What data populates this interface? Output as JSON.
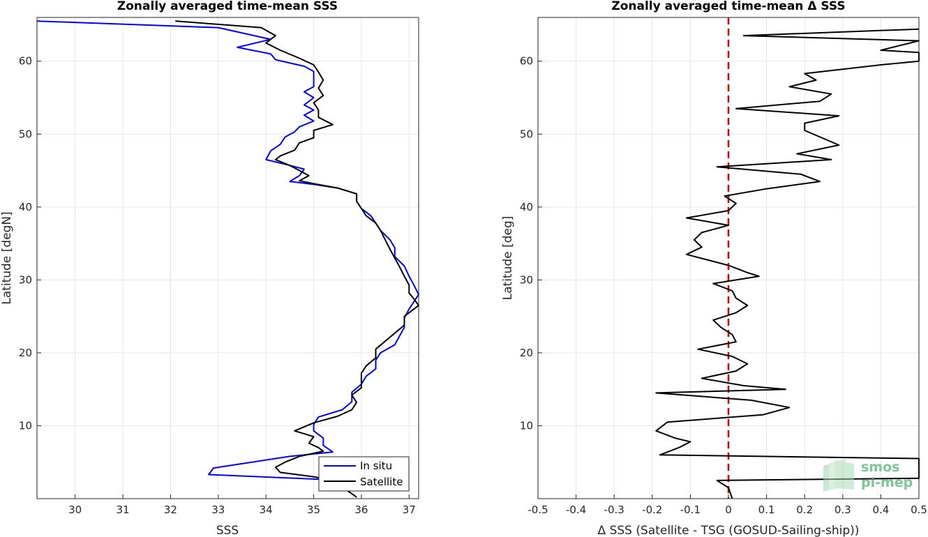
{
  "chart_data": [
    {
      "type": "line",
      "title": "Zonally averaged time-mean SSS",
      "xlabel": "SSS",
      "ylabel": "Latitude [degN]",
      "xlim": [
        29.2,
        37.2
      ],
      "ylim": [
        0,
        66
      ],
      "xticks": [
        30,
        31,
        32,
        33,
        34,
        35,
        36,
        37
      ],
      "yticks": [
        10,
        20,
        30,
        40,
        50,
        60
      ],
      "grid": true,
      "legend": {
        "placement": "bottom-right"
      },
      "series": [
        {
          "name": "In situ",
          "color": "#0000ff",
          "points": [
            [
              29.2,
              65.5
            ],
            [
              33.0,
              64.6
            ],
            [
              34.1,
              63.0
            ],
            [
              33.4,
              61.9
            ],
            [
              34.1,
              61.0
            ],
            [
              34.2,
              60.2
            ],
            [
              34.8,
              59.3
            ],
            [
              35.0,
              58.6
            ],
            [
              35.0,
              57.5
            ],
            [
              35.0,
              56.5
            ],
            [
              34.8,
              55.8
            ],
            [
              35.0,
              55.0
            ],
            [
              34.8,
              54.0
            ],
            [
              35.0,
              53.3
            ],
            [
              34.8,
              52.6
            ],
            [
              35.0,
              51.8
            ],
            [
              34.7,
              51.0
            ],
            [
              34.6,
              50.3
            ],
            [
              34.4,
              49.6
            ],
            [
              34.3,
              48.6
            ],
            [
              34.1,
              47.7
            ],
            [
              34.0,
              46.5
            ],
            [
              34.5,
              45.7
            ],
            [
              34.8,
              45.2
            ],
            [
              34.7,
              44.3
            ],
            [
              34.5,
              43.5
            ],
            [
              35.0,
              43.1
            ],
            [
              35.5,
              42.6
            ],
            [
              35.9,
              41.8
            ],
            [
              35.9,
              40.8
            ],
            [
              36.0,
              39.8
            ],
            [
              36.2,
              38.8
            ],
            [
              36.3,
              37.8
            ],
            [
              36.4,
              36.8
            ],
            [
              36.6,
              35.5
            ],
            [
              36.7,
              34.4
            ],
            [
              36.7,
              33.2
            ],
            [
              36.9,
              31.9
            ],
            [
              37.0,
              30.5
            ],
            [
              37.1,
              29.3
            ],
            [
              37.2,
              28.0
            ],
            [
              37.1,
              27.0
            ],
            [
              37.0,
              26.0
            ],
            [
              36.9,
              24.8
            ],
            [
              36.9,
              23.5
            ],
            [
              36.8,
              22.3
            ],
            [
              36.7,
              21.1
            ],
            [
              36.4,
              20.0
            ],
            [
              36.3,
              19.0
            ],
            [
              36.3,
              17.8
            ],
            [
              36.1,
              16.8
            ],
            [
              36.0,
              15.7
            ],
            [
              35.8,
              14.6
            ],
            [
              35.8,
              13.3
            ],
            [
              35.6,
              12.2
            ],
            [
              35.1,
              11.2
            ],
            [
              35.0,
              10.2
            ],
            [
              35.0,
              9.3
            ],
            [
              35.2,
              8.3
            ],
            [
              35.2,
              7.3
            ],
            [
              35.4,
              6.4
            ],
            [
              34.5,
              5.8
            ],
            [
              32.9,
              4.2
            ],
            [
              32.8,
              3.3
            ],
            [
              35.3,
              2.6
            ],
            [
              35.5,
              2.0
            ],
            [
              35.6,
              1.2
            ]
          ]
        },
        {
          "name": "Satellite",
          "color": "#000000",
          "points": [
            [
              32.1,
              65.5
            ],
            [
              33.9,
              64.6
            ],
            [
              34.2,
              63.5
            ],
            [
              34.0,
              62.5
            ],
            [
              34.3,
              61.5
            ],
            [
              34.7,
              60.4
            ],
            [
              35.0,
              59.5
            ],
            [
              35.1,
              58.5
            ],
            [
              35.2,
              57.4
            ],
            [
              35.1,
              56.3
            ],
            [
              35.2,
              55.3
            ],
            [
              35.0,
              54.3
            ],
            [
              35.1,
              53.3
            ],
            [
              35.1,
              52.3
            ],
            [
              35.4,
              51.3
            ],
            [
              35.0,
              50.5
            ],
            [
              35.0,
              49.5
            ],
            [
              34.7,
              48.8
            ],
            [
              34.6,
              47.8
            ],
            [
              34.3,
              47.0
            ],
            [
              34.2,
              46.5
            ],
            [
              34.5,
              45.7
            ],
            [
              34.7,
              45.0
            ],
            [
              34.9,
              44.3
            ],
            [
              34.7,
              43.6
            ],
            [
              35.0,
              43.2
            ],
            [
              35.5,
              42.6
            ],
            [
              35.9,
              41.8
            ],
            [
              35.9,
              40.8
            ],
            [
              36.0,
              39.8
            ],
            [
              36.1,
              38.8
            ],
            [
              36.3,
              37.8
            ],
            [
              36.4,
              36.8
            ],
            [
              36.5,
              35.5
            ],
            [
              36.6,
              34.2
            ],
            [
              36.7,
              33.0
            ],
            [
              36.8,
              31.8
            ],
            [
              36.9,
              30.5
            ],
            [
              37.0,
              29.3
            ],
            [
              37.0,
              28.2
            ],
            [
              37.1,
              27.4
            ],
            [
              37.2,
              26.5
            ],
            [
              37.1,
              26.0
            ],
            [
              36.9,
              25.0
            ],
            [
              36.9,
              23.8
            ],
            [
              36.7,
              22.7
            ],
            [
              36.5,
              21.6
            ],
            [
              36.3,
              20.5
            ],
            [
              36.3,
              19.3
            ],
            [
              36.1,
              18.2
            ],
            [
              36.0,
              17.2
            ],
            [
              36.0,
              16.2
            ],
            [
              36.0,
              15.2
            ],
            [
              35.8,
              14.2
            ],
            [
              35.9,
              13.2
            ],
            [
              35.8,
              12.2
            ],
            [
              35.5,
              11.3
            ],
            [
              35.0,
              10.4
            ],
            [
              34.6,
              9.3
            ],
            [
              35.0,
              8.5
            ],
            [
              34.9,
              7.6
            ],
            [
              35.1,
              7.0
            ],
            [
              35.2,
              6.5
            ],
            [
              34.7,
              5.8
            ],
            [
              34.4,
              5.0
            ],
            [
              34.2,
              4.3
            ],
            [
              34.3,
              3.6
            ],
            [
              35.0,
              3.0
            ],
            [
              35.5,
              2.4
            ],
            [
              35.6,
              1.6
            ],
            [
              35.9,
              0.2
            ]
          ]
        }
      ]
    },
    {
      "type": "line",
      "title": "Zonally averaged time-mean Δ SSS",
      "xlabel": "Δ SSS (Satellite - TSG (GOSUD-Sailing-ship))",
      "ylabel": "Latitude [deg]",
      "xlim": [
        -0.5,
        0.5
      ],
      "ylim": [
        0,
        66
      ],
      "xticks": [
        -0.5,
        -0.4,
        -0.3,
        -0.2,
        -0.1,
        0,
        0.1,
        0.2,
        0.3,
        0.4,
        0.5
      ],
      "yticks": [
        10,
        20,
        30,
        40,
        50,
        60
      ],
      "grid": true,
      "reference_line": {
        "x": 0,
        "color": "#e00000",
        "style": "dashed"
      },
      "series": [
        {
          "name": "",
          "color": "#000000",
          "points": [
            [
              0.5,
              64.4
            ],
            [
              0.04,
              63.5
            ],
            [
              0.5,
              62.8
            ],
            [
              0.4,
              61.5
            ],
            [
              0.5,
              61.2
            ],
            [
              0.5,
              60.0
            ],
            [
              0.4,
              59.5
            ],
            [
              0.2,
              58.3
            ],
            [
              0.23,
              57.4
            ],
            [
              0.16,
              56.5
            ],
            [
              0.27,
              55.5
            ],
            [
              0.24,
              54.5
            ],
            [
              0.02,
              53.5
            ],
            [
              0.29,
              52.5
            ],
            [
              0.2,
              51.5
            ],
            [
              0.2,
              50.5
            ],
            [
              0.29,
              48.5
            ],
            [
              0.18,
              47.3
            ],
            [
              0.27,
              46.5
            ],
            [
              -0.03,
              45.5
            ],
            [
              0.19,
              44.5
            ],
            [
              0.24,
              43.5
            ],
            [
              0.1,
              42.5
            ],
            [
              -0.01,
              41.5
            ],
            [
              0.02,
              40.5
            ],
            [
              0.0,
              39.5
            ],
            [
              -0.11,
              38.5
            ],
            [
              0.0,
              37.5
            ],
            [
              -0.07,
              36.5
            ],
            [
              -0.09,
              35.5
            ],
            [
              -0.07,
              34.5
            ],
            [
              -0.11,
              33.5
            ],
            [
              0.0,
              32.0
            ],
            [
              0.05,
              31.0
            ],
            [
              0.08,
              30.5
            ],
            [
              -0.04,
              29.5
            ],
            [
              0.01,
              28.5
            ],
            [
              0.02,
              27.5
            ],
            [
              0.05,
              26.5
            ],
            [
              0.02,
              25.5
            ],
            [
              -0.04,
              24.5
            ],
            [
              -0.02,
              23.5
            ],
            [
              0.01,
              22.5
            ],
            [
              0.02,
              21.5
            ],
            [
              -0.08,
              20.5
            ],
            [
              0.01,
              19.5
            ],
            [
              0.05,
              18.5
            ],
            [
              0.02,
              17.5
            ],
            [
              -0.07,
              16.5
            ],
            [
              0.04,
              15.5
            ],
            [
              0.15,
              15.0
            ],
            [
              -0.19,
              14.5
            ],
            [
              0.06,
              13.5
            ],
            [
              0.16,
              12.5
            ],
            [
              0.09,
              11.5
            ],
            [
              -0.16,
              10.5
            ],
            [
              -0.19,
              9.3
            ],
            [
              -0.14,
              8.3
            ],
            [
              -0.1,
              7.8
            ],
            [
              -0.13,
              7.0
            ],
            [
              -0.18,
              6.0
            ],
            [
              0.5,
              5.5
            ],
            [
              0.5,
              2.8
            ],
            [
              -0.03,
              2.5
            ],
            [
              0.0,
              1.5
            ],
            [
              0.01,
              0.0
            ]
          ]
        }
      ]
    }
  ],
  "logo": {
    "line1": "smos",
    "line2": "pi-mep"
  }
}
